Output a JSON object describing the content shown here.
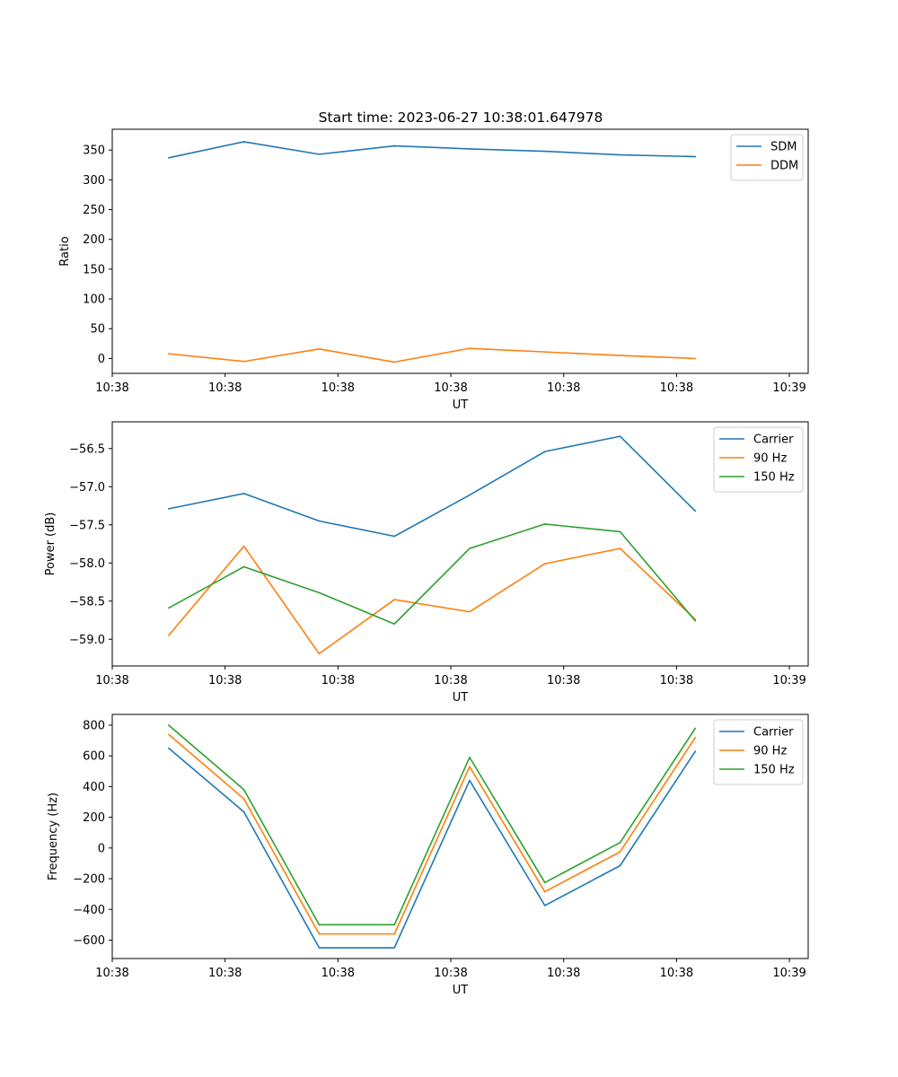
{
  "figure": {
    "title": "Start time: 2023-06-27 10:38:01.647978"
  },
  "chart_data": [
    {
      "type": "line",
      "title": "Start time: 2023-06-27 10:38:01.647978",
      "xlabel": "UT",
      "ylabel": "Ratio",
      "x": [
        0,
        1,
        2,
        3,
        4,
        5,
        6,
        7
      ],
      "xlim": [
        -0.75,
        8.5
      ],
      "x_ticks": [
        -0.75,
        0.75,
        2.25,
        3.75,
        5.25,
        6.75,
        8.25
      ],
      "x_tick_labels": [
        "10:38",
        "10:38",
        "10:38",
        "10:38",
        "10:38",
        "10:38",
        "10:39"
      ],
      "ylim": [
        -25,
        385
      ],
      "y_ticks": [
        0,
        50,
        100,
        150,
        200,
        250,
        300,
        350
      ],
      "y_tick_labels": [
        "0",
        "50",
        "100",
        "150",
        "200",
        "250",
        "300",
        "350"
      ],
      "grid": false,
      "legend": "top-right",
      "series": [
        {
          "name": "SDM",
          "color": "#1f77b4",
          "values": [
            337,
            364,
            343,
            357,
            352,
            348,
            342,
            339
          ]
        },
        {
          "name": "DDM",
          "color": "#ff7f0e",
          "values": [
            8,
            -5,
            16,
            -6,
            17,
            11,
            5,
            0
          ]
        }
      ]
    },
    {
      "type": "line",
      "title": "",
      "xlabel": "UT",
      "ylabel": "Power (dB)",
      "x": [
        0,
        1,
        2,
        3,
        4,
        5,
        6,
        7
      ],
      "xlim": [
        -0.75,
        8.5
      ],
      "x_ticks": [
        -0.75,
        0.75,
        2.25,
        3.75,
        5.25,
        6.75,
        8.25
      ],
      "x_tick_labels": [
        "10:38",
        "10:38",
        "10:38",
        "10:38",
        "10:38",
        "10:38",
        "10:39"
      ],
      "ylim": [
        -59.35,
        -56.15
      ],
      "y_ticks": [
        -59.0,
        -58.5,
        -58.0,
        -57.5,
        -57.0,
        -56.5
      ],
      "y_tick_labels": [
        "−59.0",
        "−58.5",
        "−58.0",
        "−57.5",
        "−57.0",
        "−56.5"
      ],
      "grid": false,
      "legend": "top-right",
      "series": [
        {
          "name": "Carrier",
          "color": "#1f77b4",
          "values": [
            -57.29,
            -57.09,
            -57.45,
            -57.65,
            -57.11,
            -56.54,
            -56.34,
            -57.32
          ]
        },
        {
          "name": "90 Hz",
          "color": "#ff7f0e",
          "values": [
            -58.95,
            -57.78,
            -59.19,
            -58.48,
            -58.64,
            -58.01,
            -57.81,
            -58.74
          ]
        },
        {
          "name": "150 Hz",
          "color": "#2ca02c",
          "values": [
            -58.59,
            -58.05,
            -58.39,
            -58.8,
            -57.81,
            -57.49,
            -57.59,
            -58.76
          ]
        }
      ]
    },
    {
      "type": "line",
      "title": "",
      "xlabel": "UT",
      "ylabel": "Frequency (Hz)",
      "x": [
        0,
        1,
        2,
        3,
        4,
        5,
        6,
        7
      ],
      "xlim": [
        -0.75,
        8.5
      ],
      "x_ticks": [
        -0.75,
        0.75,
        2.25,
        3.75,
        5.25,
        6.75,
        8.25
      ],
      "x_tick_labels": [
        "10:38",
        "10:38",
        "10:38",
        "10:38",
        "10:38",
        "10:38",
        "10:39"
      ],
      "ylim": [
        -720,
        870
      ],
      "y_ticks": [
        -600,
        -400,
        -200,
        0,
        200,
        400,
        600,
        800
      ],
      "y_tick_labels": [
        "−600",
        "−400",
        "−200",
        "0",
        "200",
        "400",
        "600",
        "800"
      ],
      "grid": false,
      "legend": "top-right",
      "series": [
        {
          "name": "Carrier",
          "color": "#1f77b4",
          "values": [
            650,
            235,
            -650,
            -650,
            440,
            -375,
            -115,
            630
          ]
        },
        {
          "name": "90 Hz",
          "color": "#ff7f0e",
          "values": [
            740,
            320,
            -560,
            -560,
            530,
            -285,
            -25,
            720
          ]
        },
        {
          "name": "150 Hz",
          "color": "#2ca02c",
          "values": [
            800,
            380,
            -500,
            -500,
            590,
            -225,
            35,
            780
          ]
        }
      ]
    }
  ]
}
